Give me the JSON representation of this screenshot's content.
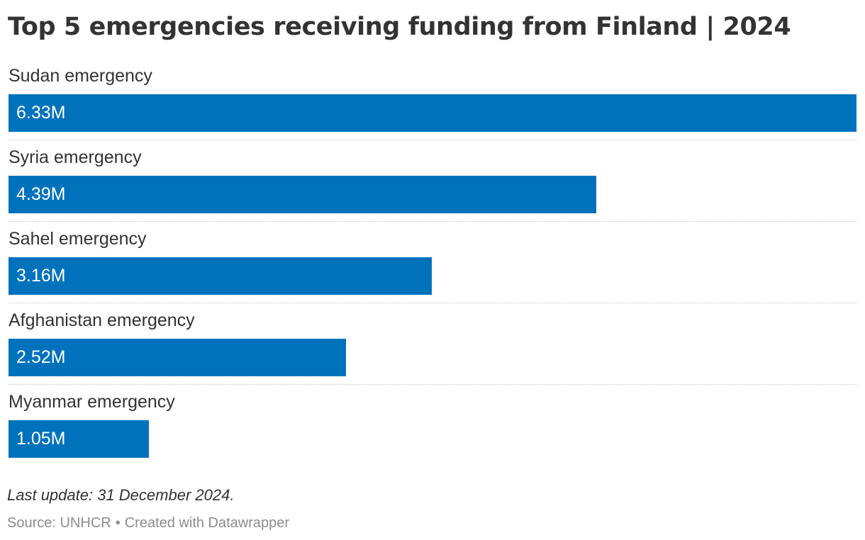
{
  "chart_data": {
    "type": "bar",
    "orientation": "horizontal",
    "title": "Top 5 emergencies receiving funding from Finland | 2024",
    "categories": [
      "Sudan emergency",
      "Syria emergency",
      "Sahel emergency",
      "Afghanistan emergency",
      "Myanmar emergency"
    ],
    "values": [
      6.33,
      4.39,
      3.16,
      2.52,
      1.05
    ],
    "value_labels": [
      "6.33M",
      "4.39M",
      "3.16M",
      "2.52M",
      "1.05M"
    ],
    "unit": "M",
    "xlim": [
      0,
      6.33
    ],
    "xlabel": "",
    "ylabel": "",
    "grid": false,
    "bar_color": "#0072bc"
  },
  "footer": {
    "note": "Last update: 31 December 2024.",
    "source": "Source: UNHCR",
    "separator": "•",
    "credit": "Created with Datawrapper"
  },
  "colors": {
    "bar": "#0072bc",
    "text": "#333333",
    "muted": "#8c8c8c"
  }
}
